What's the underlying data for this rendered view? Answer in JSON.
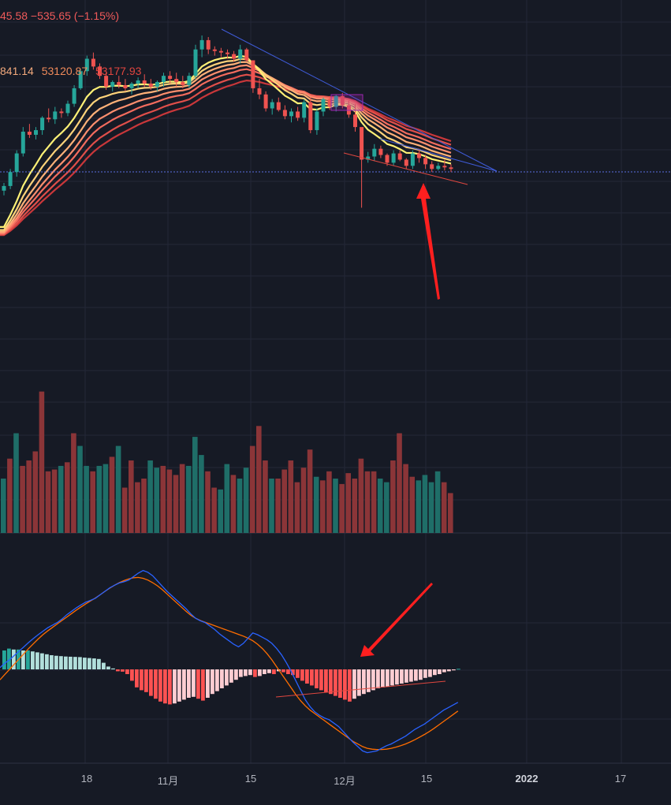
{
  "header": {
    "price_change_text": "45.58 −535.65 (−1.15%)",
    "ma_values": [
      {
        "text": "841.14",
        "color": "#f2a97c"
      },
      {
        "text": "53120.87",
        "color": "#ef8a5a"
      },
      {
        "text": "53177.93",
        "color": "#e0453f"
      }
    ]
  },
  "colors": {
    "background": "#161a25",
    "grid": "#242838",
    "up": "#26a69a",
    "down": "#ef5350",
    "volume_up": "#1f6e68",
    "volume_down": "#8b3538",
    "macd_line": "#2962ff",
    "signal_line": "#ff6d00",
    "ribbon": [
      "#fff176",
      "#ffd37a",
      "#ffb178",
      "#ff8f6e",
      "#f46c5e",
      "#e04f4a",
      "#c9373a"
    ],
    "annotation_arrow": "#ff1f1f",
    "trendline_blue": "#3f5bd8",
    "trendline_red": "#e0473f",
    "price_line": "#5b6ee1"
  },
  "x_axis_labels": [
    {
      "text": "18",
      "bold": false
    },
    {
      "text": "11月",
      "bold": false
    },
    {
      "text": "15",
      "bold": false
    },
    {
      "text": "12月",
      "bold": false
    },
    {
      "text": "15",
      "bold": false
    },
    {
      "text": "2022",
      "bold": true
    },
    {
      "text": "17",
      "bold": false
    }
  ],
  "chart_data": {
    "type": "candlestick",
    "title": "",
    "x_tick_labels": [
      "18",
      "11月",
      "15",
      "12月",
      "15",
      "2022",
      "17"
    ],
    "candles_ohlc": [
      [
        43600,
        44100,
        43300,
        43900
      ],
      [
        43900,
        45000,
        43700,
        44800
      ],
      [
        44800,
        46200,
        44500,
        46000
      ],
      [
        46000,
        47700,
        45800,
        47400
      ],
      [
        47400,
        47900,
        47000,
        47200
      ],
      [
        47200,
        47700,
        46900,
        47500
      ],
      [
        47500,
        48400,
        47200,
        48300
      ],
      [
        48300,
        48900,
        48000,
        48200
      ],
      [
        48200,
        49000,
        47900,
        48700
      ],
      [
        48700,
        48900,
        48300,
        48600
      ],
      [
        48600,
        49400,
        48400,
        49200
      ],
      [
        49200,
        50400,
        49000,
        50200
      ],
      [
        50200,
        51400,
        50100,
        51300
      ],
      [
        51300,
        52300,
        51000,
        52100
      ],
      [
        52100,
        52500,
        51400,
        51600
      ],
      [
        51600,
        51800,
        50800,
        51000
      ],
      [
        51000,
        51200,
        50100,
        50300
      ],
      [
        50300,
        50700,
        50000,
        50600
      ],
      [
        50600,
        51000,
        50200,
        50400
      ],
      [
        50400,
        50800,
        50000,
        50200
      ],
      [
        50200,
        50600,
        49800,
        50500
      ],
      [
        50500,
        50900,
        50200,
        50700
      ],
      [
        50700,
        51100,
        50300,
        50500
      ],
      [
        50500,
        50800,
        50100,
        50300
      ],
      [
        50300,
        50700,
        50000,
        50600
      ],
      [
        50600,
        51200,
        50300,
        51000
      ],
      [
        51000,
        51300,
        50500,
        50800
      ],
      [
        50800,
        51200,
        50300,
        50600
      ],
      [
        50600,
        51000,
        50200,
        50400
      ],
      [
        50400,
        51200,
        50200,
        51000
      ],
      [
        51000,
        53000,
        50800,
        52700
      ],
      [
        52700,
        53600,
        52200,
        53300
      ],
      [
        53300,
        53500,
        52400,
        52700
      ],
      [
        52700,
        52900,
        52300,
        52600
      ],
      [
        52600,
        52800,
        52200,
        52500
      ],
      [
        52500,
        52700,
        52100,
        52400
      ],
      [
        52400,
        52600,
        51900,
        52100
      ],
      [
        52100,
        53000,
        51800,
        52700
      ],
      [
        52700,
        52800,
        51900,
        52000
      ],
      [
        52000,
        51800,
        49900,
        50200
      ],
      [
        50200,
        50800,
        49500,
        49800
      ],
      [
        49800,
        50000,
        48700,
        48900
      ],
      [
        48900,
        49500,
        48500,
        49300
      ],
      [
        49300,
        49600,
        48700,
        48800
      ],
      [
        48800,
        49100,
        48200,
        48400
      ],
      [
        48400,
        48900,
        48000,
        48700
      ],
      [
        48700,
        49000,
        48100,
        48300
      ],
      [
        48300,
        49500,
        48000,
        49300
      ],
      [
        49300,
        49600,
        47300,
        47500
      ],
      [
        47500,
        48900,
        47200,
        48700
      ],
      [
        48700,
        49600,
        48400,
        49500
      ],
      [
        49500,
        49700,
        48800,
        49000
      ],
      [
        49000,
        49800,
        48700,
        49700
      ],
      [
        49700,
        49900,
        48900,
        49100
      ],
      [
        49100,
        49400,
        48300,
        48500
      ],
      [
        48500,
        49200,
        47400,
        47700
      ],
      [
        47700,
        45900,
        42500,
        45600
      ],
      [
        45600,
        46100,
        45400,
        45800
      ],
      [
        45800,
        46600,
        45500,
        46300
      ],
      [
        46300,
        46500,
        45700,
        45900
      ],
      [
        45900,
        46000,
        45200,
        45400
      ],
      [
        45400,
        46200,
        45200,
        46000
      ],
      [
        46000,
        46200,
        45500,
        45600
      ],
      [
        45600,
        45700,
        45000,
        45200
      ],
      [
        45200,
        46200,
        45000,
        46000
      ],
      [
        46000,
        46300,
        45400,
        45700
      ],
      [
        45700,
        45900,
        45000,
        45300
      ],
      [
        45300,
        45500,
        44800,
        45000
      ],
      [
        45000,
        45400,
        44900,
        45200
      ],
      [
        45200,
        45600,
        44900,
        45100
      ],
      [
        45100,
        45300,
        44800,
        45000
      ]
    ],
    "volume_up_down": [
      [
        0,
        0.3
      ],
      [
        1,
        0.41
      ],
      [
        0,
        0.55
      ],
      [
        1,
        0.37
      ],
      [
        1,
        0.4
      ],
      [
        1,
        0.45
      ],
      [
        1,
        0.78
      ],
      [
        1,
        0.34
      ],
      [
        1,
        0.35
      ],
      [
        0,
        0.37
      ],
      [
        1,
        0.39
      ],
      [
        1,
        0.55
      ],
      [
        0,
        0.48
      ],
      [
        0,
        0.37
      ],
      [
        1,
        0.34
      ],
      [
        0,
        0.37
      ],
      [
        0,
        0.38
      ],
      [
        1,
        0.42
      ],
      [
        0,
        0.48
      ],
      [
        1,
        0.25
      ],
      [
        1,
        0.4
      ],
      [
        1,
        0.28
      ],
      [
        1,
        0.3
      ],
      [
        0,
        0.4
      ],
      [
        0,
        0.36
      ],
      [
        1,
        0.37
      ],
      [
        1,
        0.35
      ],
      [
        1,
        0.32
      ],
      [
        1,
        0.38
      ],
      [
        0,
        0.37
      ],
      [
        0,
        0.53
      ],
      [
        0,
        0.43
      ],
      [
        1,
        0.34
      ],
      [
        1,
        0.25
      ],
      [
        0,
        0.24
      ],
      [
        0,
        0.38
      ],
      [
        1,
        0.32
      ],
      [
        0,
        0.3
      ],
      [
        0,
        0.36
      ],
      [
        1,
        0.48
      ],
      [
        1,
        0.59
      ],
      [
        1,
        0.4
      ],
      [
        0,
        0.3
      ],
      [
        1,
        0.3
      ],
      [
        1,
        0.35
      ],
      [
        1,
        0.4
      ],
      [
        1,
        0.28
      ],
      [
        1,
        0.36
      ],
      [
        1,
        0.46
      ],
      [
        0,
        0.31
      ],
      [
        1,
        0.29
      ],
      [
        1,
        0.34
      ],
      [
        0,
        0.3
      ],
      [
        1,
        0.27
      ],
      [
        1,
        0.33
      ],
      [
        1,
        0.3
      ],
      [
        1,
        0.41
      ],
      [
        1,
        0.34
      ],
      [
        1,
        0.34
      ],
      [
        0,
        0.3
      ],
      [
        0,
        0.28
      ],
      [
        1,
        0.4
      ],
      [
        1,
        0.55
      ],
      [
        1,
        0.38
      ],
      [
        1,
        0.31
      ],
      [
        0,
        0.29
      ],
      [
        0,
        0.32
      ],
      [
        0,
        0.28
      ],
      [
        0,
        0.34
      ],
      [
        1,
        0.28
      ],
      [
        1,
        0.22
      ]
    ],
    "macd": {
      "macd_line": [
        0.1,
        0.35,
        0.55,
        0.8,
        1.05,
        1.3,
        1.55,
        1.78,
        2.0,
        2.2,
        2.4,
        2.55,
        2.7,
        2.9,
        3.15,
        3.35,
        3.55,
        3.72,
        3.88,
        3.98,
        4.1,
        4.3,
        4.5,
        4.7,
        4.85,
        4.98,
        5.05,
        5.15,
        5.35,
        5.55,
        5.7,
        5.6,
        5.4,
        5.1,
        4.8,
        4.5,
        4.25,
        4.0,
        3.75,
        3.5,
        3.2,
        2.95,
        2.8,
        2.7,
        2.5,
        2.3,
        2.05,
        1.85,
        1.65,
        1.45,
        1.3,
        1.5,
        1.8,
        2.1,
        2.0,
        1.85,
        1.7,
        1.5,
        1.2,
        0.85,
        0.4,
        -0.1,
        -0.65,
        -1.2,
        -1.75,
        -2.15,
        -2.45,
        -2.65,
        -2.8,
        -2.9,
        -3.1,
        -3.3,
        -3.6,
        -3.9,
        -4.2,
        -4.45,
        -4.7,
        -4.8,
        -4.75,
        -4.7,
        -4.55,
        -4.4,
        -4.3,
        -4.15,
        -4.0,
        -3.85,
        -3.65,
        -3.45,
        -3.3,
        -3.15,
        -2.95,
        -2.75,
        -2.55,
        -2.35,
        -2.2,
        -2.05,
        -1.9
      ],
      "signal_line": [
        -0.6,
        -0.3,
        0.0,
        0.3,
        0.6,
        0.9,
        1.2,
        1.48,
        1.75,
        2.0,
        2.22,
        2.42,
        2.62,
        2.82,
        3.02,
        3.22,
        3.42,
        3.6,
        3.78,
        3.95,
        4.12,
        4.3,
        4.5,
        4.68,
        4.85,
        5.0,
        5.12,
        5.22,
        5.28,
        5.3,
        5.25,
        5.15,
        5.0,
        4.82,
        4.6,
        4.35,
        4.1,
        3.85,
        3.6,
        3.35,
        3.12,
        2.95,
        2.82,
        2.72,
        2.62,
        2.52,
        2.42,
        2.32,
        2.22,
        2.12,
        2.02,
        1.92,
        1.8,
        1.65,
        1.45,
        1.2,
        0.9,
        0.55,
        0.15,
        -0.25,
        -0.65,
        -1.05,
        -1.45,
        -1.8,
        -2.1,
        -2.35,
        -2.55,
        -2.75,
        -2.95,
        -3.15,
        -3.35,
        -3.55,
        -3.75,
        -3.95,
        -4.15,
        -4.3,
        -4.45,
        -4.55,
        -4.6,
        -4.62,
        -4.62,
        -4.6,
        -4.55,
        -4.48,
        -4.4,
        -4.3,
        -4.18,
        -4.05,
        -3.9,
        -3.75,
        -3.58,
        -3.4,
        -3.2,
        -3.0,
        -2.8,
        -2.6,
        -2.4
      ],
      "histogram": [
        1.0,
        1.1,
        1.05,
        1.05,
        1.0,
        1.0,
        0.95,
        0.9,
        0.85,
        0.8,
        0.75,
        0.72,
        0.7,
        0.68,
        0.67,
        0.66,
        0.65,
        0.62,
        0.6,
        0.58,
        0.55,
        0.35,
        0.15,
        0.05,
        -0.1,
        -0.12,
        -0.25,
        -0.6,
        -0.95,
        -1.1,
        -1.2,
        -1.4,
        -1.55,
        -1.7,
        -1.8,
        -1.85,
        -1.8,
        -1.7,
        -1.6,
        -1.5,
        -1.45,
        -1.55,
        -1.65,
        -1.5,
        -1.3,
        -1.15,
        -1.0,
        -0.85,
        -0.7,
        -0.55,
        -0.4,
        -0.35,
        -0.3,
        -0.4,
        -0.35,
        -0.25,
        -0.2,
        -0.25,
        -0.1,
        -0.15,
        -0.25,
        -0.3,
        -0.45,
        -0.6,
        -0.75,
        -0.85,
        -1.0,
        -1.1,
        -1.2,
        -1.3,
        -1.4,
        -1.5,
        -1.6,
        -1.7,
        -1.55,
        -1.4,
        -1.3,
        -1.2,
        -1.1,
        -1.0,
        -0.95,
        -0.9,
        -0.85,
        -0.8,
        -0.75,
        -0.7,
        -0.65,
        -0.6,
        -0.55,
        -0.45,
        -0.4,
        -0.3,
        -0.25,
        -0.15,
        -0.1,
        -0.05,
        0.03
      ]
    }
  }
}
